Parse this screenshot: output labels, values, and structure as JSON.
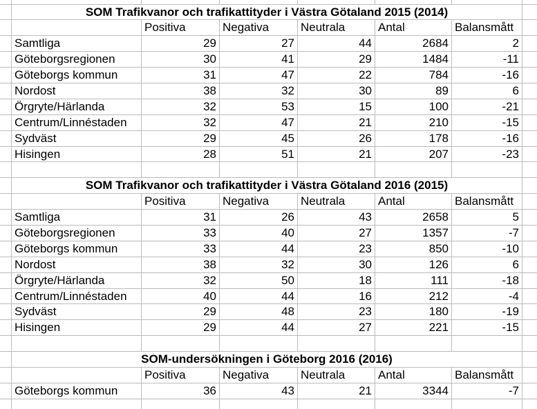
{
  "app": {
    "kind": "spreadsheet-grid",
    "background_color": "#ffffff",
    "gridline_color": "#b7babc",
    "text_color": "#000000"
  },
  "columns": {
    "positiva": "Positiva",
    "negativa": "Negativa",
    "neutrala": "Neutrala",
    "antal": "Antal",
    "balansmatt": "Balansmått"
  },
  "tables": [
    {
      "title": "SOM Trafikvanor och trafikattityder i Västra Götaland 2015 (2014)",
      "rows": [
        {
          "label": "Samtliga",
          "values": [
            29,
            27,
            44,
            2684,
            2
          ]
        },
        {
          "label": "Göteborgsregionen",
          "values": [
            30,
            41,
            29,
            1484,
            -11
          ]
        },
        {
          "label": "Göteborgs kommun",
          "values": [
            31,
            47,
            22,
            784,
            -16
          ]
        },
        {
          "label": "Nordost",
          "values": [
            38,
            32,
            30,
            89,
            6
          ]
        },
        {
          "label": "Örgryte/Härlanda",
          "values": [
            32,
            53,
            15,
            100,
            -21
          ]
        },
        {
          "label": "Centrum/Linnéstaden",
          "values": [
            32,
            47,
            21,
            210,
            -15
          ]
        },
        {
          "label": "Sydväst",
          "values": [
            29,
            45,
            26,
            178,
            -16
          ]
        },
        {
          "label": "Hisingen",
          "values": [
            28,
            51,
            21,
            207,
            -23
          ]
        }
      ]
    },
    {
      "title": "SOM Trafikvanor och trafikattityder i Västra Götaland 2016 (2015)",
      "rows": [
        {
          "label": "Samtliga",
          "values": [
            31,
            26,
            43,
            2658,
            5
          ]
        },
        {
          "label": "Göteborgsregionen",
          "values": [
            33,
            40,
            27,
            1357,
            -7
          ]
        },
        {
          "label": "Göteborgs kommun",
          "values": [
            33,
            44,
            23,
            850,
            -10
          ]
        },
        {
          "label": "Nordost",
          "values": [
            38,
            32,
            30,
            126,
            6
          ]
        },
        {
          "label": "Örgryte/Härlanda",
          "values": [
            32,
            50,
            18,
            111,
            -18
          ]
        },
        {
          "label": "Centrum/Linnéstaden",
          "values": [
            40,
            44,
            16,
            212,
            -4
          ]
        },
        {
          "label": "Sydväst",
          "values": [
            29,
            48,
            23,
            180,
            -19
          ]
        },
        {
          "label": "Hisingen",
          "values": [
            29,
            44,
            27,
            221,
            -15
          ]
        }
      ]
    },
    {
      "title": "SOM-undersökningen i Göteborg 2016 (2016)",
      "rows": [
        {
          "label": "Göteborgs kommun",
          "values": [
            36,
            43,
            21,
            3344,
            -7
          ]
        }
      ]
    }
  ]
}
